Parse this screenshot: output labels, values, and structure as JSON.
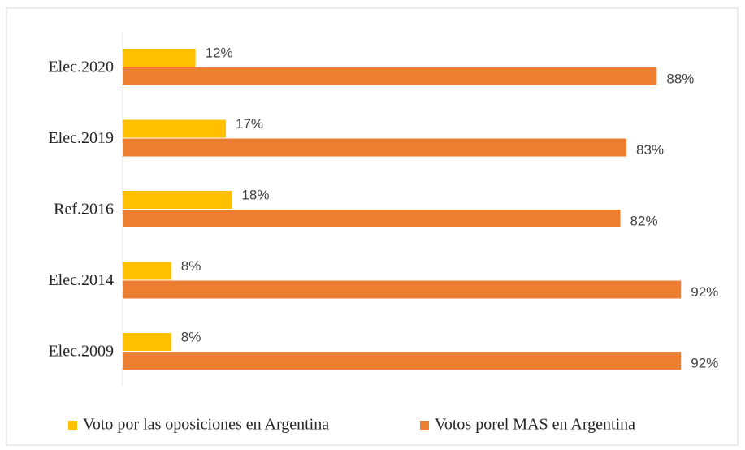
{
  "chart_data": {
    "type": "bar",
    "orientation": "horizontal",
    "categories": [
      "Elec.2020",
      "Elec.2019",
      "Ref.2016",
      "Elec.2014",
      "Elec.2009"
    ],
    "series": [
      {
        "name": "Voto por las oposiciones en Argentina",
        "color": "#FFC000",
        "values": [
          12,
          17,
          18,
          8,
          8
        ],
        "value_labels": [
          "12%",
          "17%",
          "18%",
          "8%",
          "8%"
        ]
      },
      {
        "name": "Votos porel MAS en Argentina",
        "color": "#ED7D31",
        "values": [
          88,
          83,
          82,
          92,
          92
        ],
        "value_labels": [
          "88%",
          "83%",
          "82%",
          "92%",
          "92%"
        ]
      }
    ],
    "legend": "bottom"
  }
}
